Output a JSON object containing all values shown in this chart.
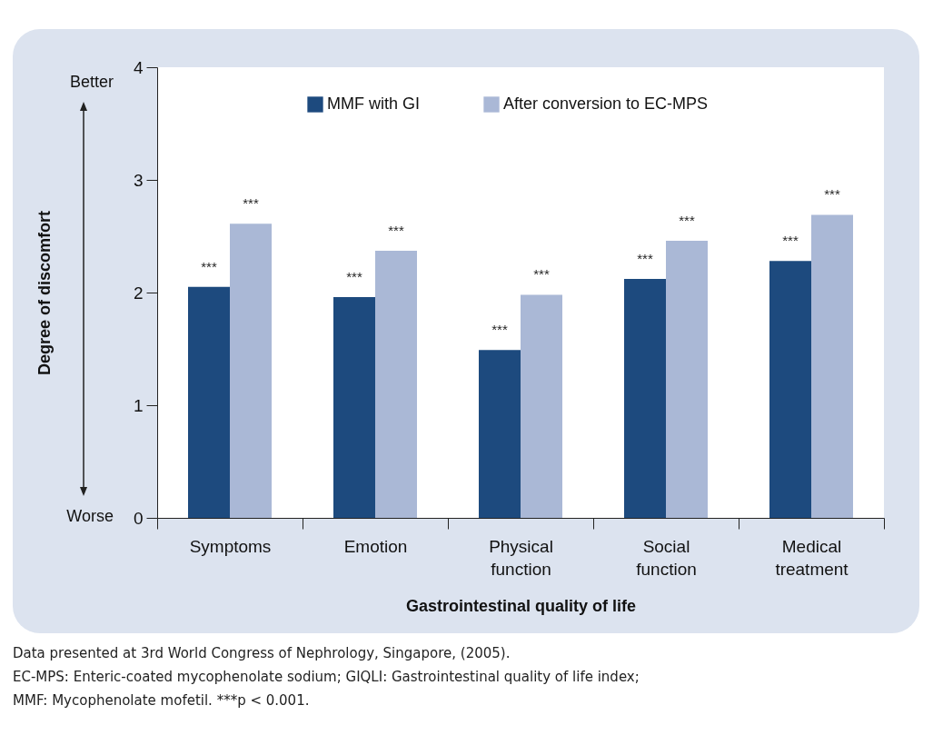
{
  "chart_data": {
    "type": "bar",
    "categories": [
      "Symptoms",
      "Emotion",
      "Physical function",
      "Social function",
      "Medical treatment"
    ],
    "series": [
      {
        "name": "MMF with GI",
        "color": "#1d4a7e",
        "values": [
          2.05,
          1.96,
          1.49,
          2.12,
          2.28
        ],
        "value_labels": [
          "***",
          "***",
          "***",
          "***",
          "***"
        ]
      },
      {
        "name": "After conversion to EC-MPS",
        "color": "#aab8d6",
        "values": [
          2.61,
          2.37,
          1.98,
          2.46,
          2.69
        ],
        "value_labels": [
          "***",
          "***",
          "***",
          "***",
          "***"
        ]
      }
    ],
    "xlabel": "Gastrointestinal quality of life",
    "ylabel": "Degree of discomfort",
    "ylim": [
      0,
      4
    ],
    "yticks": [
      0,
      1,
      2,
      3,
      4
    ],
    "legend": "top",
    "annotations": [
      "Better",
      "Worse",
      "Data presented at 3rd World Congress of Nephrology, Singapore, (2005).",
      "EC-MPS: Enteric-coated mycophenolate sodium; GIQLI: Gastrointestinal quality of life index;",
      "MMF: Mycophenolate mofetil. ***p < 0.001."
    ]
  }
}
